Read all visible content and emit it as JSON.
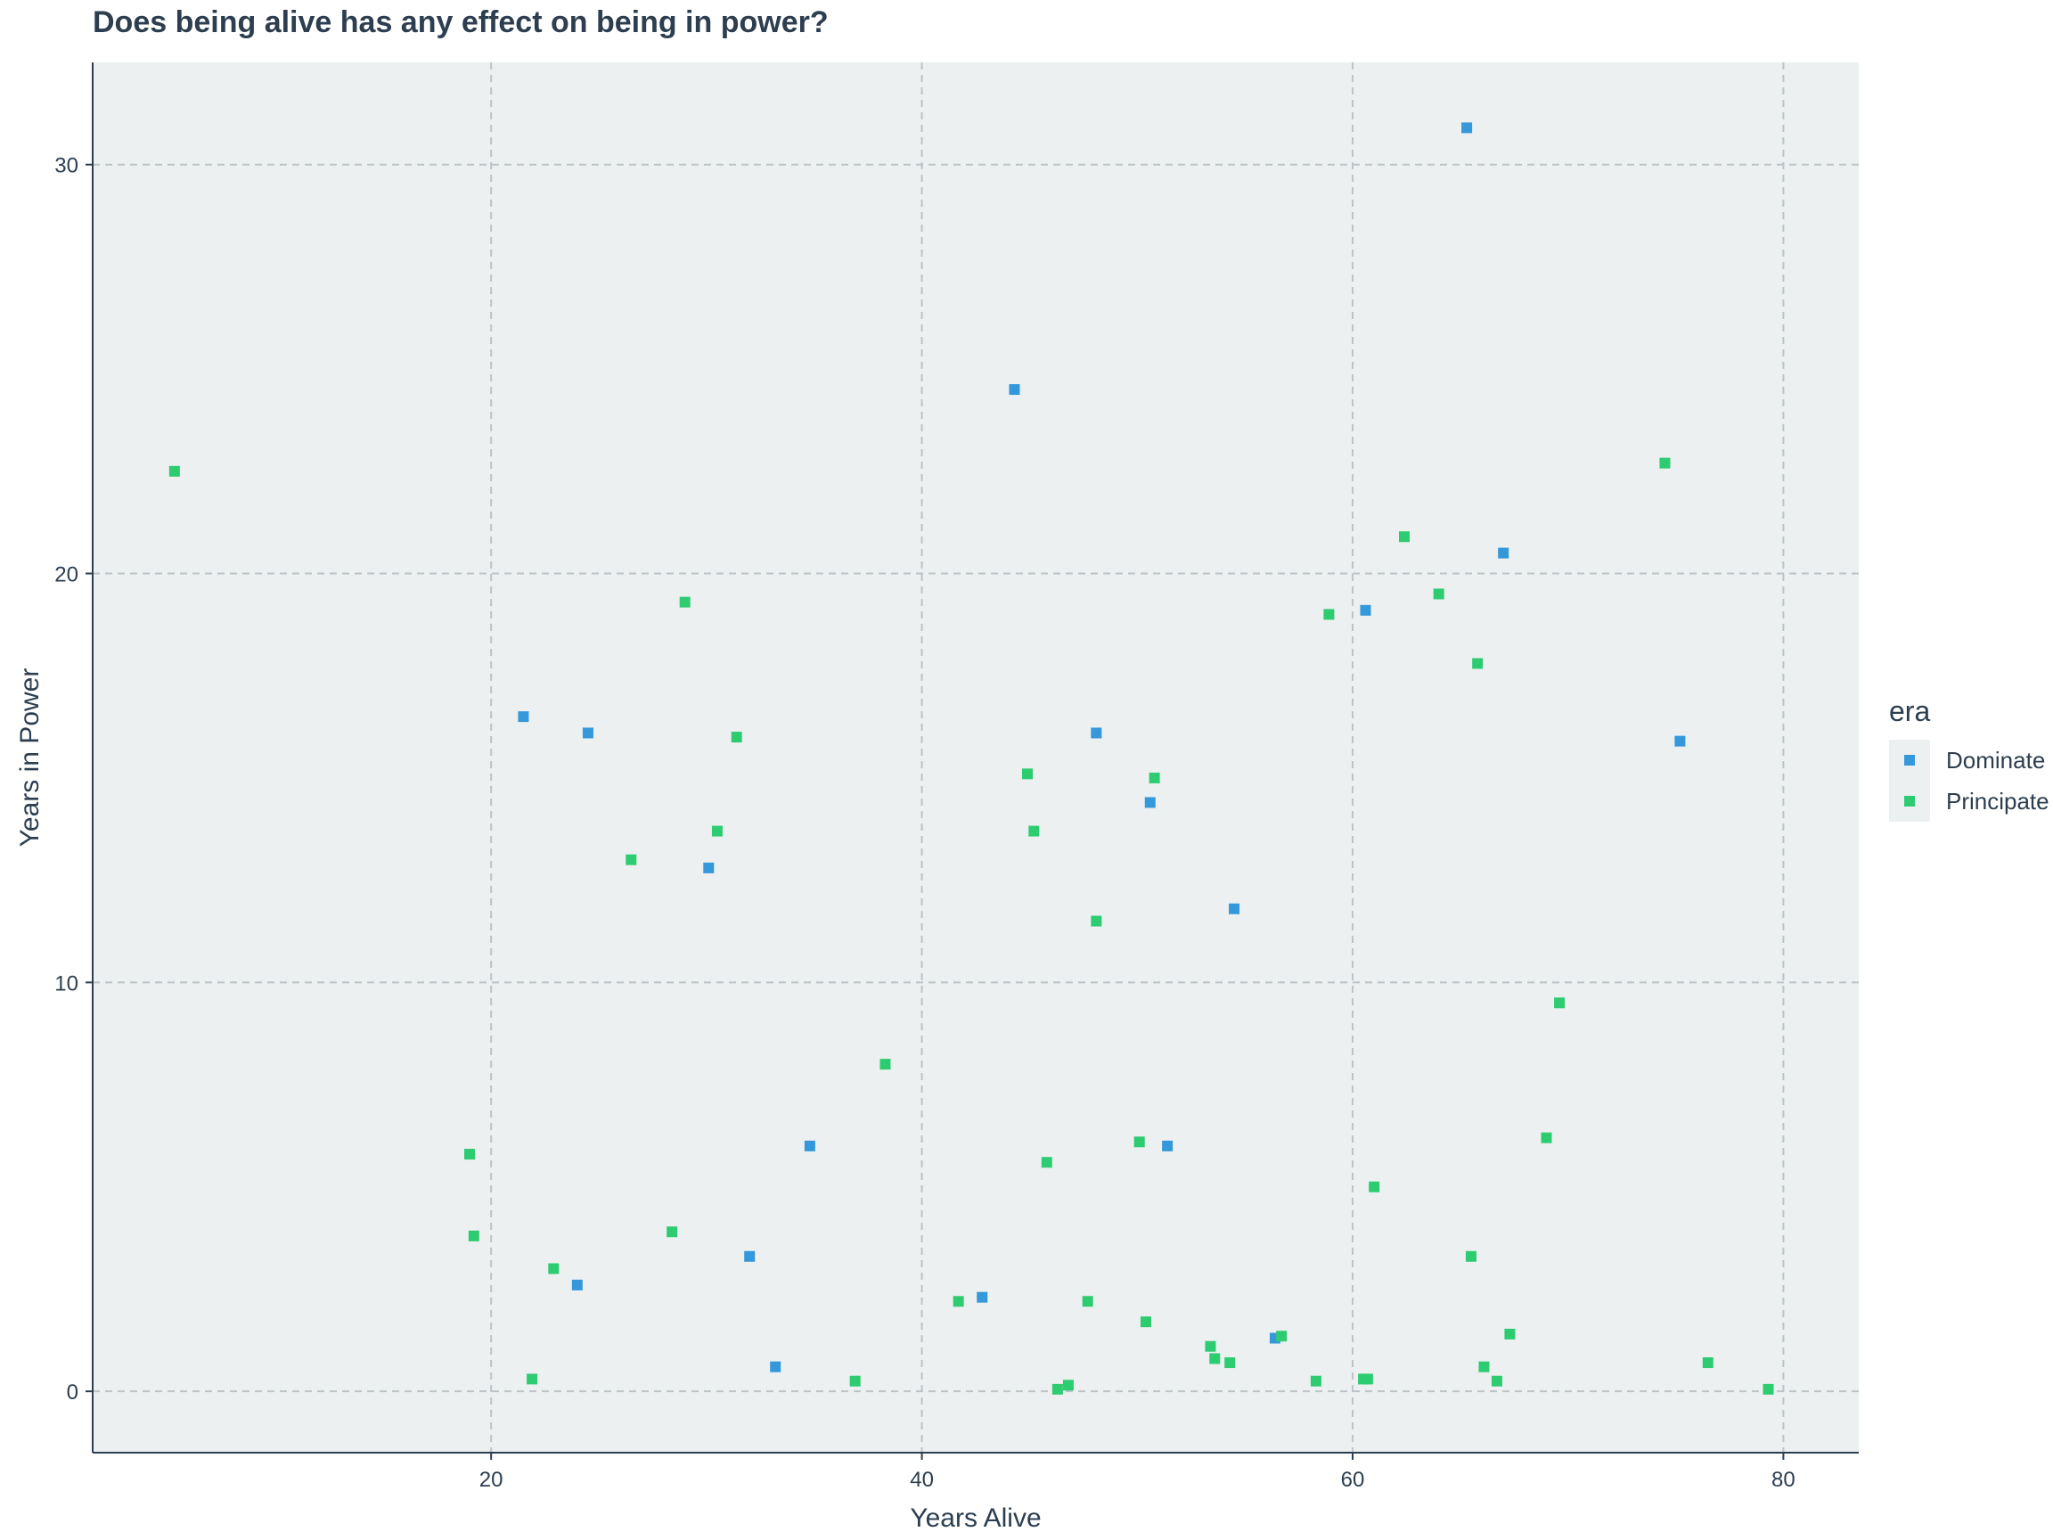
{
  "chart_data": {
    "type": "scatter",
    "title": "Does being alive has any effect on being in power?",
    "xlabel": "Years Alive",
    "ylabel": "Years in Power",
    "xlim": [
      1.5,
      83.5
    ],
    "ylim": [
      -1.5,
      32.5
    ],
    "x_ticks": [
      20,
      40,
      60,
      80
    ],
    "y_ticks": [
      0,
      10,
      20,
      30
    ],
    "grid": true,
    "legend": {
      "title": "era",
      "position": "right"
    },
    "series": [
      {
        "name": "Dominate",
        "color": "#3498db",
        "points": [
          [
            21.5,
            16.5
          ],
          [
            24.5,
            16.1
          ],
          [
            24.0,
            2.6
          ],
          [
            30.1,
            12.8
          ],
          [
            32.0,
            3.3
          ],
          [
            33.2,
            0.6
          ],
          [
            34.8,
            6.0
          ],
          [
            42.8,
            2.3
          ],
          [
            44.3,
            24.5
          ],
          [
            48.1,
            16.1
          ],
          [
            50.6,
            14.4
          ],
          [
            51.4,
            6.0
          ],
          [
            54.5,
            11.8
          ],
          [
            56.4,
            1.3
          ],
          [
            60.6,
            19.1
          ],
          [
            65.3,
            30.9
          ],
          [
            67.0,
            20.5
          ],
          [
            75.2,
            15.9
          ]
        ]
      },
      {
        "name": "Principate",
        "color": "#2ecc71",
        "points": [
          [
            5.3,
            22.5
          ],
          [
            19.0,
            5.8
          ],
          [
            19.2,
            3.8
          ],
          [
            21.9,
            0.3
          ],
          [
            22.9,
            3.0
          ],
          [
            26.5,
            13.0
          ],
          [
            28.4,
            3.9
          ],
          [
            29.0,
            19.3
          ],
          [
            30.5,
            13.7
          ],
          [
            31.4,
            16.0
          ],
          [
            36.9,
            0.25
          ],
          [
            38.3,
            8.0
          ],
          [
            41.7,
            2.2
          ],
          [
            44.9,
            15.1
          ],
          [
            45.2,
            13.7
          ],
          [
            45.8,
            5.6
          ],
          [
            46.3,
            0.05
          ],
          [
            46.8,
            0.15
          ],
          [
            47.7,
            2.2
          ],
          [
            48.1,
            11.5
          ],
          [
            50.1,
            6.1
          ],
          [
            50.4,
            1.7
          ],
          [
            50.8,
            15.0
          ],
          [
            53.4,
            1.1
          ],
          [
            53.6,
            0.8
          ],
          [
            54.3,
            0.7
          ],
          [
            56.7,
            1.35
          ],
          [
            58.3,
            0.25
          ],
          [
            58.9,
            19.0
          ],
          [
            60.5,
            0.3
          ],
          [
            60.7,
            0.3
          ],
          [
            61.0,
            5.0
          ],
          [
            62.4,
            20.9
          ],
          [
            64.0,
            19.5
          ],
          [
            65.5,
            3.3
          ],
          [
            65.8,
            17.8
          ],
          [
            66.1,
            0.6
          ],
          [
            66.7,
            0.25
          ],
          [
            67.3,
            1.4
          ],
          [
            69.0,
            6.2
          ],
          [
            69.6,
            9.5
          ],
          [
            74.5,
            22.7
          ],
          [
            76.5,
            0.7
          ],
          [
            79.3,
            0.05
          ]
        ]
      }
    ]
  }
}
